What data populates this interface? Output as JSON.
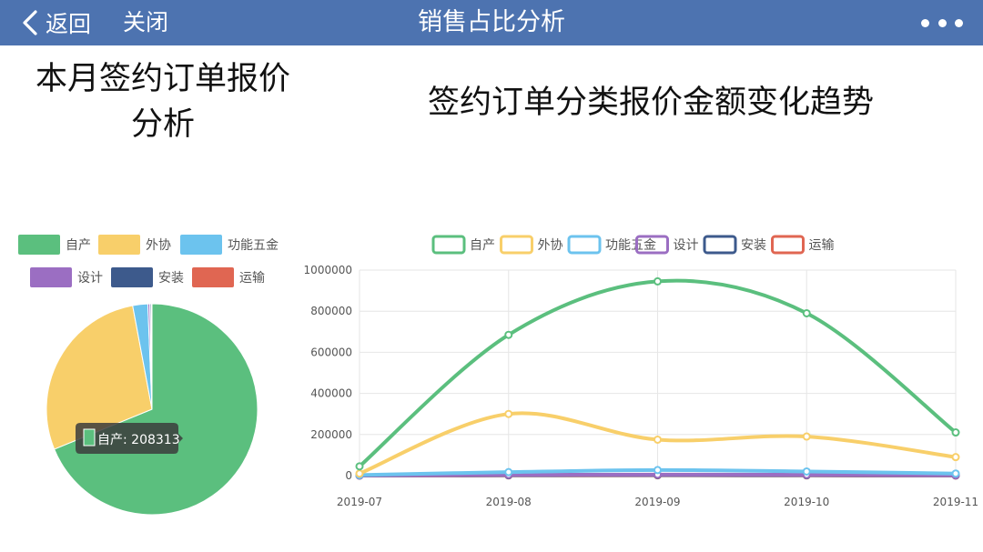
{
  "nav": {
    "back_label": "返回",
    "close_label": "关闭",
    "title": "销售占比分析",
    "more_icon": "more-dots-icon"
  },
  "headings": {
    "left_line1": "本月签约订单报价",
    "left_line2": "分析",
    "right": "签约订单分类报价金额变化趋势"
  },
  "chart_data": [
    {
      "type": "pie",
      "title": "本月签约订单报价分析",
      "legend_position": "top",
      "slices": [
        {
          "name": "自产",
          "value": 208313,
          "color": "#5bbf7e"
        },
        {
          "name": "外协",
          "value": 85500,
          "color": "#f8cf6a"
        },
        {
          "name": "功能五金",
          "value": 7000,
          "color": "#6cc3ee"
        },
        {
          "name": "设计",
          "value": 900,
          "color": "#9b6ec2"
        },
        {
          "name": "安装",
          "value": 600,
          "color": "#3d5a8c"
        },
        {
          "name": "运输",
          "value": 400,
          "color": "#e06652"
        }
      ],
      "tooltip": "自产: 208313"
    },
    {
      "type": "line",
      "title": "签约订单分类报价金额变化趋势",
      "legend_position": "top",
      "smooth": true,
      "grid": true,
      "categories": [
        "2019-07",
        "2019-08",
        "2019-09",
        "2019-10",
        "2019-11"
      ],
      "ylim": [
        0,
        1000000
      ],
      "yticks": [
        0,
        200000,
        400000,
        600000,
        800000,
        1000000
      ],
      "series": [
        {
          "name": "自产",
          "color": "#5bbf7e",
          "values": [
            45000,
            685000,
            945000,
            790000,
            210000
          ]
        },
        {
          "name": "外协",
          "color": "#f8cf6a",
          "values": [
            10000,
            300000,
            175000,
            190000,
            90000
          ]
        },
        {
          "name": "功能五金",
          "color": "#6cc3ee",
          "values": [
            3000,
            17000,
            27000,
            20000,
            10000
          ]
        },
        {
          "name": "设计",
          "color": "#9b6ec2",
          "values": [
            1000,
            4000,
            5000,
            4000,
            2000
          ]
        },
        {
          "name": "安装",
          "color": "#3d5a8c",
          "values": [
            500,
            2000,
            3000,
            2000,
            1000
          ]
        },
        {
          "name": "运输",
          "color": "#e06652",
          "values": [
            300,
            1000,
            1500,
            1000,
            500
          ]
        }
      ]
    }
  ]
}
